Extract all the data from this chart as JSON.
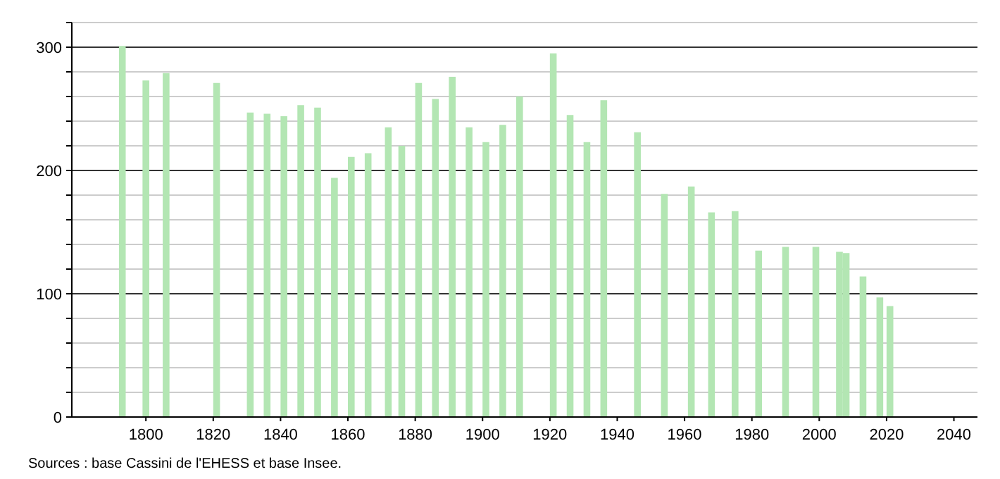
{
  "chart_data": {
    "type": "bar",
    "x": [
      1793,
      1800,
      1806,
      1821,
      1831,
      1836,
      1841,
      1846,
      1851,
      1856,
      1861,
      1866,
      1872,
      1876,
      1881,
      1886,
      1891,
      1896,
      1901,
      1906,
      1911,
      1921,
      1926,
      1931,
      1936,
      1946,
      1954,
      1962,
      1968,
      1975,
      1982,
      1990,
      1999,
      2006,
      2008,
      2013,
      2018,
      2021
    ],
    "values": [
      301,
      273,
      279,
      271,
      247,
      246,
      244,
      253,
      251,
      194,
      211,
      214,
      235,
      220,
      271,
      258,
      276,
      235,
      223,
      237,
      260,
      295,
      245,
      223,
      257,
      231,
      181,
      187,
      166,
      167,
      135,
      138,
      138,
      134,
      133,
      114,
      97,
      90
    ],
    "color": "#b3e6b3",
    "xlim": [
      1778,
      2047
    ],
    "xticks": [
      1800,
      1820,
      1840,
      1860,
      1880,
      1900,
      1920,
      1940,
      1960,
      1980,
      2000,
      2020,
      2040
    ],
    "ylim": [
      0,
      320
    ],
    "yticks": [
      0,
      {
        "value": 20,
        "label": null
      },
      {
        "value": 40,
        "label": null
      },
      {
        "value": 60,
        "label": null
      },
      {
        "value": 80,
        "label": null
      },
      100,
      {
        "value": 120,
        "label": null
      },
      {
        "value": 140,
        "label": null
      },
      {
        "value": 160,
        "label": null
      },
      {
        "value": 180,
        "label": null
      },
      200,
      {
        "value": 220,
        "label": null
      },
      {
        "value": 240,
        "label": null
      },
      {
        "value": 260,
        "label": null
      },
      {
        "value": 280,
        "label": null
      },
      300,
      {
        "value": 320,
        "label": null
      }
    ],
    "grid": "y",
    "annotations": [
      "Sources : base Cassini de l'EHESS et base Insee."
    ]
  }
}
